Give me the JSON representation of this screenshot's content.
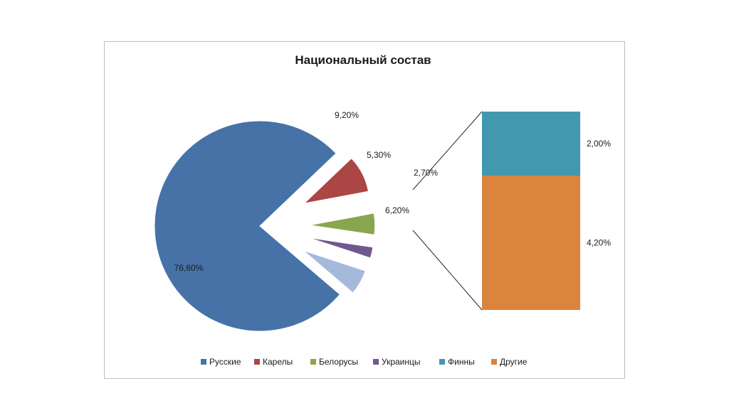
{
  "chart_data": {
    "type": "bar-of-pie",
    "title": "Национальный состав",
    "pie": {
      "slices": [
        {
          "name": "Русские",
          "value": 76.6,
          "label": "76,60%",
          "color": "#4672a8"
        },
        {
          "name": "Карелы",
          "value": 9.2,
          "label": "9,20%",
          "color": "#aa4644"
        },
        {
          "name": "Белорусы",
          "value": 5.3,
          "label": "5,30%",
          "color": "#89a54e"
        },
        {
          "name": "Украинцы",
          "value": 2.7,
          "label": "2,70%",
          "color": "#71588f"
        },
        {
          "name": "",
          "value": 6.2,
          "label": "6,20%",
          "color": "#a5b9da"
        }
      ]
    },
    "bar": {
      "segments": [
        {
          "name": "Финны",
          "value": 2.0,
          "label": "2,00%",
          "color": "#4198af"
        },
        {
          "name": "Другие",
          "value": 4.2,
          "label": "4,20%",
          "color": "#db843d"
        }
      ]
    },
    "legend": {
      "placement": "bottom",
      "entries": [
        {
          "name": "Русские",
          "color": "#4672a8"
        },
        {
          "name": "Карелы",
          "color": "#aa4644"
        },
        {
          "name": "Белорусы",
          "color": "#89a54e"
        },
        {
          "name": "Украинцы",
          "color": "#71588f"
        },
        {
          "name": "Финны",
          "color": "#4198af"
        },
        {
          "name": "Другие",
          "color": "#db843d"
        }
      ]
    }
  }
}
